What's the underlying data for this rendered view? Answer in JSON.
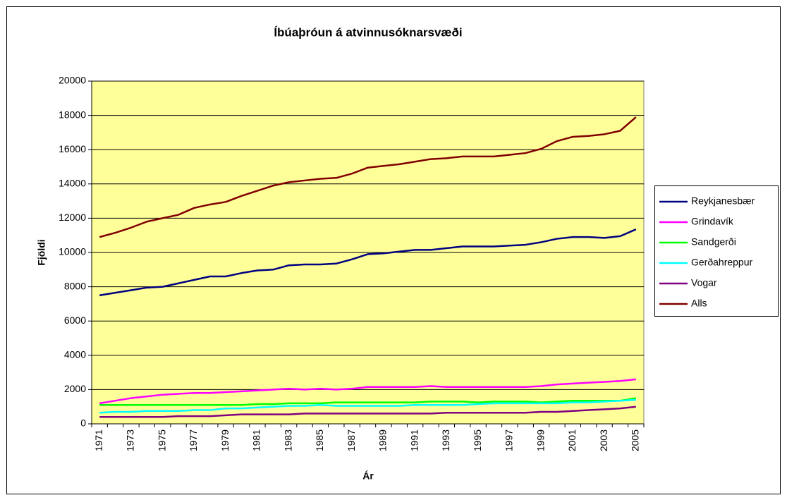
{
  "chart_data": {
    "type": "line",
    "title": "Íbúaþróun á atvinnusóknarsvæði",
    "x_label": "Ár",
    "y_label": "Fjöldi",
    "categories": [
      "1971",
      null,
      "1973",
      null,
      "1975",
      null,
      "1977",
      null,
      "1979",
      null,
      "1981",
      null,
      "1983",
      null,
      "1985",
      null,
      "1987",
      null,
      "1989",
      null,
      "1991",
      null,
      "1993",
      null,
      "1995",
      null,
      "1997",
      null,
      "1999",
      null,
      "2001",
      null,
      "2003",
      null,
      "2005"
    ],
    "series": [
      {
        "name": "Reykjanesbær",
        "color": "#000080",
        "values": [
          7500,
          7650,
          7800,
          7950,
          8000,
          8200,
          8400,
          8600,
          8600,
          8800,
          8950,
          9000,
          9250,
          9300,
          9300,
          9350,
          9600,
          9900,
          9950,
          10050,
          10150,
          10150,
          10250,
          10350,
          10350,
          10350,
          10400,
          10450,
          10600,
          10800,
          10900,
          10900,
          10850,
          10950,
          11350
        ]
      },
      {
        "name": "Grindavík",
        "color": "#FF00FF",
        "values": [
          1200,
          1350,
          1500,
          1600,
          1700,
          1750,
          1800,
          1800,
          1850,
          1900,
          1950,
          2000,
          2050,
          2000,
          2050,
          2000,
          2050,
          2150,
          2150,
          2150,
          2150,
          2200,
          2150,
          2150,
          2150,
          2150,
          2150,
          2150,
          2200,
          2300,
          2350,
          2400,
          2450,
          2500,
          2600
        ]
      },
      {
        "name": "Sandgerði",
        "color": "#00FF00",
        "values": [
          1100,
          1100,
          1100,
          1100,
          1100,
          1100,
          1100,
          1100,
          1100,
          1100,
          1150,
          1150,
          1200,
          1200,
          1200,
          1250,
          1250,
          1250,
          1250,
          1250,
          1250,
          1300,
          1300,
          1300,
          1250,
          1300,
          1300,
          1300,
          1250,
          1300,
          1350,
          1350,
          1350,
          1350,
          1500
        ]
      },
      {
        "name": "Gerðahreppur",
        "color": "#00FFFF",
        "values": [
          650,
          700,
          700,
          750,
          750,
          750,
          800,
          800,
          900,
          900,
          950,
          1000,
          1050,
          1050,
          1100,
          1050,
          1050,
          1050,
          1050,
          1050,
          1100,
          1100,
          1100,
          1100,
          1150,
          1200,
          1200,
          1200,
          1200,
          1200,
          1250,
          1250,
          1300,
          1350,
          1400
        ]
      },
      {
        "name": "Vogar",
        "color": "#800080",
        "values": [
          400,
          400,
          400,
          400,
          400,
          450,
          450,
          450,
          500,
          550,
          550,
          550,
          550,
          600,
          600,
          600,
          600,
          600,
          600,
          600,
          600,
          600,
          650,
          650,
          650,
          650,
          650,
          650,
          700,
          700,
          750,
          800,
          850,
          900,
          1000
        ]
      },
      {
        "name": "Alls",
        "color": "#800000",
        "values": [
          10900,
          11150,
          11450,
          11800,
          12000,
          12200,
          12600,
          12800,
          12950,
          13300,
          13600,
          13900,
          14100,
          14200,
          14300,
          14350,
          14600,
          14950,
          15050,
          15150,
          15300,
          15450,
          15500,
          15600,
          15600,
          15600,
          15700,
          15800,
          16050,
          16500,
          16750,
          16800,
          16900,
          17100,
          17900
        ]
      }
    ],
    "ylim": [
      0,
      20000
    ],
    "yticks": [
      0,
      2000,
      4000,
      6000,
      8000,
      10000,
      12000,
      14000,
      16000,
      18000,
      20000
    ],
    "grid": true,
    "legend": "right",
    "plot_color": "#FFFF99"
  }
}
